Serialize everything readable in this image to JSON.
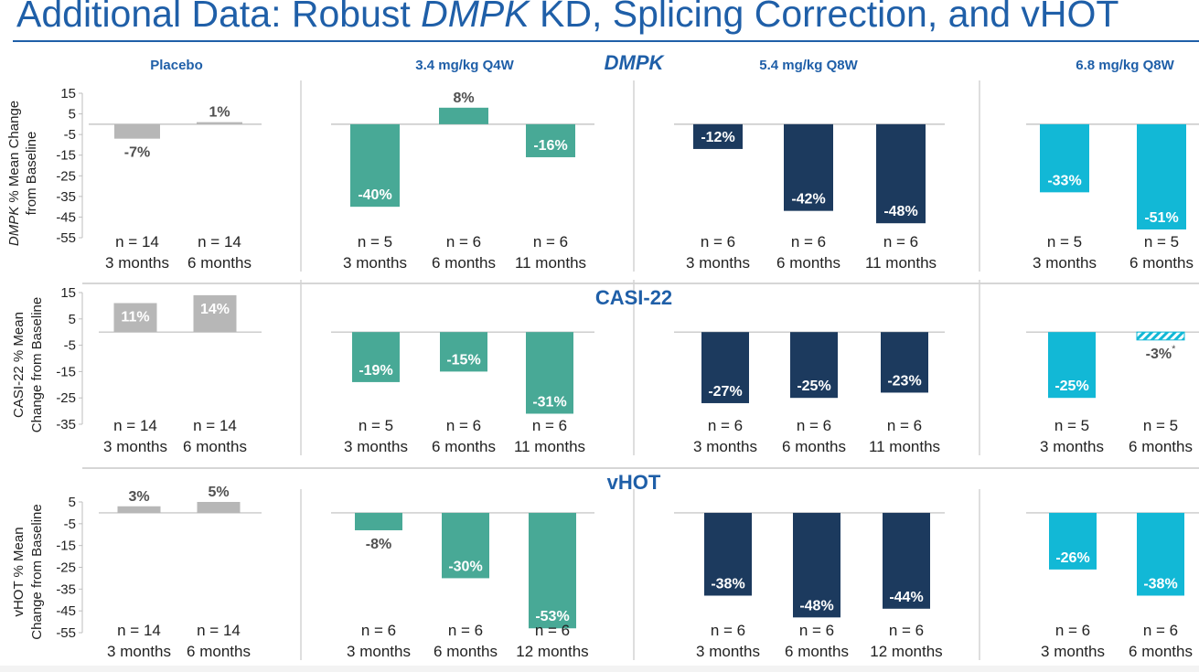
{
  "title": {
    "prefix": "Additional Data: Robust ",
    "italic": "DMPK",
    "suffix": " KD, Splicing Correction, and vHOT"
  },
  "group_headers": [
    "Placebo",
    "3.4 mg/kg Q4W",
    "5.4 mg/kg Q8W",
    "6.8 mg/kg Q8W"
  ],
  "colors": {
    "placebo": "#b7b7b7",
    "dose_3_4": "#48a996",
    "dose_5_4": "#1c3a5e",
    "dose_6_8": "#12b8d6",
    "title_blue": "#1f5fa8",
    "label_dark": "#505050"
  },
  "chart_data": [
    {
      "type": "bar",
      "title": "DMPK",
      "ylabel": "DMPK % Mean Change from Baseline",
      "ylabel_italic_prefix": "DMPK",
      "ylabel_rest": " % Mean Change",
      "ylabel_line2": "from Baseline",
      "yticks": [
        15,
        5,
        -5,
        -15,
        -25,
        -35,
        -45,
        -55
      ],
      "ylim": [
        -55,
        15
      ],
      "groups": [
        {
          "name": "Placebo",
          "bars": [
            {
              "n": "n = 14",
              "time": "3 months",
              "value": -7,
              "label": "-7%"
            },
            {
              "n": "n = 14",
              "time": "6 months",
              "value": 1,
              "label": "1%"
            }
          ]
        },
        {
          "name": "3.4 mg/kg Q4W",
          "bars": [
            {
              "n": "n = 5",
              "time": "3 months",
              "value": -40,
              "label": "-40%"
            },
            {
              "n": "n = 6",
              "time": "6 months",
              "value": 8,
              "label": "8%"
            },
            {
              "n": "n = 6",
              "time": "11 months",
              "value": -16,
              "label": "-16%"
            }
          ]
        },
        {
          "name": "5.4 mg/kg Q8W",
          "bars": [
            {
              "n": "n = 6",
              "time": "3 months",
              "value": -12,
              "label": "-12%"
            },
            {
              "n": "n = 6",
              "time": "6 months",
              "value": -42,
              "label": "-42%"
            },
            {
              "n": "n = 6",
              "time": "11 months",
              "value": -48,
              "label": "-48%"
            }
          ]
        },
        {
          "name": "6.8 mg/kg Q8W",
          "bars": [
            {
              "n": "n = 5",
              "time": "3 months",
              "value": -33,
              "label": "-33%"
            },
            {
              "n": "n = 5",
              "time": "6 months",
              "value": -51,
              "label": "-51%"
            }
          ]
        }
      ]
    },
    {
      "type": "bar",
      "title": "CASI-22",
      "ylabel": "CASI-22 % Mean Change from Baseline",
      "ylabel_line1": "CASI-22 % Mean",
      "ylabel_line2": "Change from Baseline",
      "yticks": [
        15,
        5,
        -5,
        -15,
        -25,
        -35
      ],
      "ylim": [
        -35,
        15
      ],
      "groups": [
        {
          "name": "Placebo",
          "bars": [
            {
              "n": "n = 14",
              "time": "3 months",
              "value": 11,
              "label": "11%"
            },
            {
              "n": "n = 14",
              "time": "6 months",
              "value": 14,
              "label": "14%"
            }
          ]
        },
        {
          "name": "3.4 mg/kg Q4W",
          "bars": [
            {
              "n": "n = 5",
              "time": "3 months",
              "value": -19,
              "label": "-19%"
            },
            {
              "n": "n = 6",
              "time": "6 months",
              "value": -15,
              "label": "-15%"
            },
            {
              "n": "n = 6",
              "time": "11 months",
              "value": -31,
              "label": "-31%"
            }
          ]
        },
        {
          "name": "5.4 mg/kg Q8W",
          "bars": [
            {
              "n": "n = 6",
              "time": "3 months",
              "value": -27,
              "label": "-27%"
            },
            {
              "n": "n = 6",
              "time": "6 months",
              "value": -25,
              "label": "-25%"
            },
            {
              "n": "n = 6",
              "time": "11 months",
              "value": -23,
              "label": "-23%"
            }
          ]
        },
        {
          "name": "6.8 mg/kg Q8W",
          "bars": [
            {
              "n": "n = 5",
              "time": "3 months",
              "value": -25,
              "label": "-25%"
            },
            {
              "n": "n = 5",
              "time": "6 months",
              "value": -3,
              "label": "-3%",
              "footnote": "*",
              "hatched": true
            }
          ]
        }
      ]
    },
    {
      "type": "bar",
      "title": "vHOT",
      "ylabel": "vHOT % Mean Change from Baseline",
      "ylabel_line1": "vHOT % Mean",
      "ylabel_line2": "Change from Baseline",
      "yticks": [
        5,
        -5,
        -15,
        -25,
        -35,
        -45,
        -55
      ],
      "ylim": [
        -55,
        10
      ],
      "groups": [
        {
          "name": "Placebo",
          "bars": [
            {
              "n": "n = 14",
              "time": "3 months",
              "value": 3,
              "label": "3%"
            },
            {
              "n": "n = 14",
              "time": "6 months",
              "value": 5,
              "label": "5%"
            }
          ]
        },
        {
          "name": "3.4 mg/kg Q4W",
          "bars": [
            {
              "n": "n = 6",
              "time": "3 months",
              "value": -8,
              "label": "-8%"
            },
            {
              "n": "n = 6",
              "time": "6 months",
              "value": -30,
              "label": "-30%"
            },
            {
              "n": "n = 6",
              "time": "12 months",
              "value": -53,
              "label": "-53%"
            }
          ]
        },
        {
          "name": "5.4 mg/kg Q8W",
          "bars": [
            {
              "n": "n = 6",
              "time": "3 months",
              "value": -38,
              "label": "-38%"
            },
            {
              "n": "n = 6",
              "time": "6 months",
              "value": -48,
              "label": "-48%"
            },
            {
              "n": "n = 6",
              "time": "12 months",
              "value": -44,
              "label": "-44%"
            }
          ]
        },
        {
          "name": "6.8 mg/kg Q8W",
          "bars": [
            {
              "n": "n = 6",
              "time": "3 months",
              "value": -26,
              "label": "-26%"
            },
            {
              "n": "n = 6",
              "time": "6 months",
              "value": -38,
              "label": "-38%"
            }
          ]
        }
      ]
    }
  ]
}
